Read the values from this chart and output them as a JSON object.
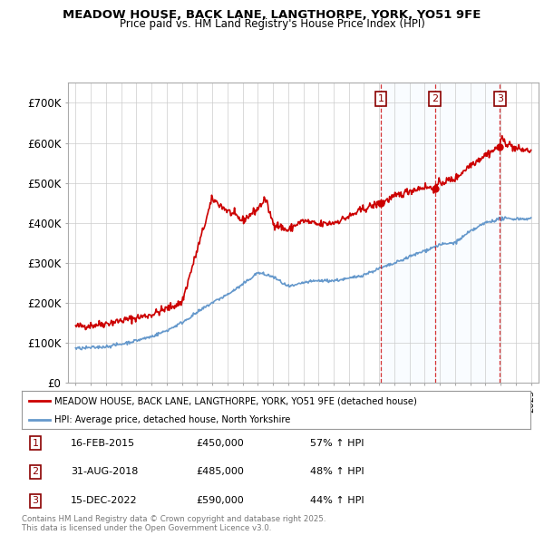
{
  "title": "MEADOW HOUSE, BACK LANE, LANGTHORPE, YORK, YO51 9FE",
  "subtitle": "Price paid vs. HM Land Registry's House Price Index (HPI)",
  "red_line_label": "MEADOW HOUSE, BACK LANE, LANGTHORPE, YORK, YO51 9FE (detached house)",
  "blue_line_label": "HPI: Average price, detached house, North Yorkshire",
  "transactions": [
    {
      "num": 1,
      "date": "16-FEB-2015",
      "price": "£450,000",
      "change": "57% ↑ HPI",
      "year": 2015.12,
      "price_val": 450000
    },
    {
      "num": 2,
      "date": "31-AUG-2018",
      "price": "£485,000",
      "change": "48% ↑ HPI",
      "year": 2018.67,
      "price_val": 485000
    },
    {
      "num": 3,
      "date": "15-DEC-2022",
      "price": "£590,000",
      "change": "44% ↑ HPI",
      "year": 2022.96,
      "price_val": 590000
    }
  ],
  "footer": "Contains HM Land Registry data © Crown copyright and database right 2025.\nThis data is licensed under the Open Government Licence v3.0.",
  "ylim": [
    0,
    750000
  ],
  "yticks": [
    0,
    100000,
    200000,
    300000,
    400000,
    500000,
    600000,
    700000
  ],
  "ytick_labels": [
    "£0",
    "£100K",
    "£200K",
    "£300K",
    "£400K",
    "£500K",
    "£600K",
    "£700K"
  ],
  "xlim_start": 1994.5,
  "xlim_end": 2025.5,
  "red_color": "#cc0000",
  "blue_color": "#6699cc",
  "blue_shade_color": "#ddeeff",
  "background_color": "#ffffff",
  "grid_color": "#cccccc",
  "noise_seed": 42,
  "red_anchors_years": [
    1995,
    1996,
    1997,
    1998,
    1999,
    2000,
    2001,
    2002,
    2003,
    2004,
    2005,
    2006,
    2007,
    2007.5,
    2008,
    2009,
    2009.5,
    2010,
    2011,
    2012,
    2013,
    2014,
    2015.12,
    2016,
    2017,
    2018,
    2018.67,
    2019,
    2020,
    2021,
    2022,
    2022.96,
    2023,
    2024,
    2025
  ],
  "red_anchors_vals": [
    140000,
    143000,
    148000,
    155000,
    162000,
    170000,
    185000,
    200000,
    330000,
    460000,
    430000,
    405000,
    435000,
    460000,
    400000,
    380000,
    395000,
    405000,
    395000,
    400000,
    415000,
    435000,
    450000,
    465000,
    480000,
    490000,
    485000,
    500000,
    510000,
    545000,
    570000,
    590000,
    610000,
    585000,
    580000
  ],
  "blue_anchors_years": [
    1995,
    1996,
    1997,
    1998,
    1999,
    2000,
    2001,
    2002,
    2003,
    2004,
    2005,
    2006,
    2007,
    2008,
    2009,
    2009.5,
    2010,
    2011,
    2012,
    2013,
    2014,
    2015,
    2016,
    2017,
    2018,
    2019,
    2020,
    2021,
    2022,
    2023,
    2024,
    2025
  ],
  "blue_anchors_vals": [
    85000,
    87000,
    90000,
    96000,
    105000,
    115000,
    130000,
    150000,
    175000,
    200000,
    220000,
    245000,
    275000,
    265000,
    240000,
    243000,
    250000,
    255000,
    255000,
    260000,
    270000,
    285000,
    298000,
    315000,
    330000,
    345000,
    350000,
    378000,
    400000,
    410000,
    410000,
    410000
  ]
}
